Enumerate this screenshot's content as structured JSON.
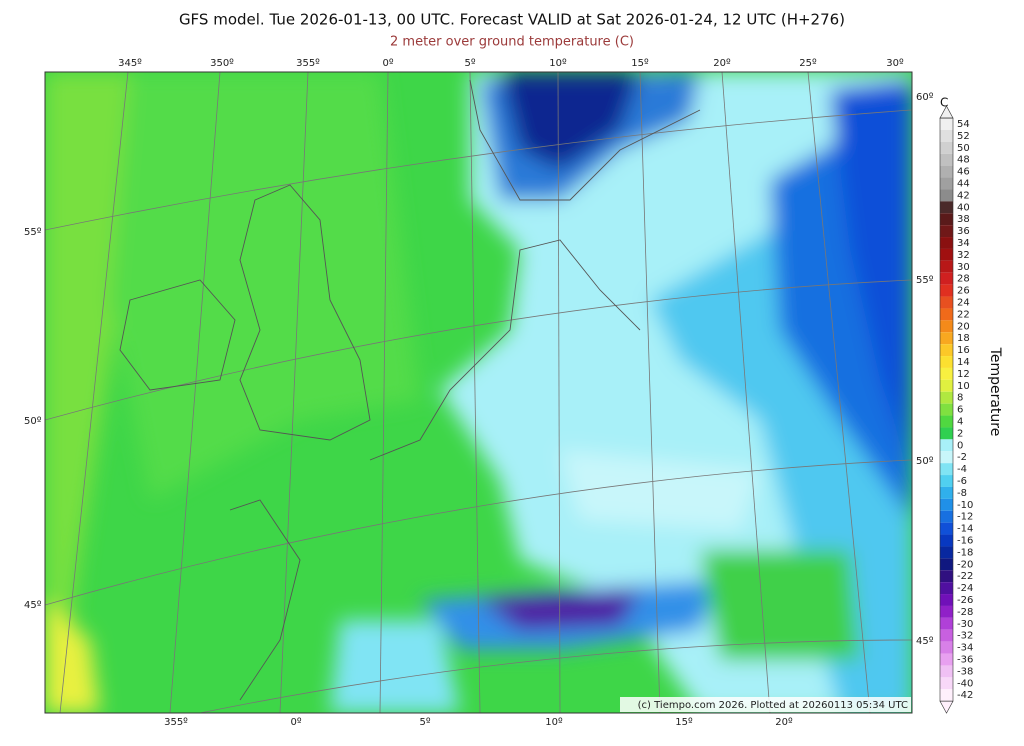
{
  "header": {
    "title": "GFS model. Tue 2026-01-13, 00 UTC. Forecast VALID at Sat 2026-01-24, 12 UTC (H+276)",
    "subtitle": "2 meter over ground temperature (C)"
  },
  "map": {
    "top_labels": [
      "345º",
      "350º",
      "355º",
      "0º",
      "5º",
      "10º",
      "15º",
      "20º",
      "25º",
      "30º"
    ],
    "bottom_labels": [
      "355º",
      "0º",
      "5º",
      "10º",
      "15º",
      "20º"
    ],
    "left_labels": [
      "55º",
      "50º",
      "45º"
    ],
    "right_labels": [
      "60º",
      "55º",
      "50º",
      "45º"
    ],
    "credit": "(c) Tiempo.com 2026. Plotted at 20260113 05:34 UTC"
  },
  "colorbar": {
    "unit": "C",
    "title": "Temperature",
    "ticks": [
      54,
      52,
      50,
      48,
      46,
      44,
      42,
      40,
      38,
      36,
      34,
      32,
      30,
      28,
      26,
      24,
      22,
      20,
      18,
      16,
      14,
      12,
      10,
      8,
      6,
      4,
      2,
      0,
      -2,
      -4,
      -6,
      -8,
      -10,
      -12,
      -14,
      -16,
      -18,
      -20,
      -22,
      -24,
      -26,
      -28,
      -30,
      -32,
      -34,
      -36,
      -38,
      -40,
      -42
    ],
    "colors": [
      "#f0f0f0",
      "#e0e0e0",
      "#d0d0d0",
      "#c0c0c0",
      "#b0b0b0",
      "#a0a0a0",
      "#8c8c8c",
      "#4a2a2a",
      "#5a1a1a",
      "#701818",
      "#8a1010",
      "#a01010",
      "#b81818",
      "#d02020",
      "#e03020",
      "#e85020",
      "#f06a1a",
      "#f48a1a",
      "#f8a820",
      "#fcc828",
      "#fce030",
      "#f8f040",
      "#e0f040",
      "#b0e840",
      "#80e040",
      "#50d840",
      "#30d050",
      "#a8f0f8",
      "#c8f6fa",
      "#80e4f4",
      "#50d0f0",
      "#30b0ec",
      "#2090e8",
      "#1870e0",
      "#1050d8",
      "#0838c0",
      "#0828a0",
      "#101880",
      "#301080",
      "#5010a0",
      "#7010b8",
      "#9020c8",
      "#b040d8",
      "#c860e0",
      "#d880e8",
      "#e8a0f0",
      "#f0c0f4",
      "#f8d8f8",
      "#fff0fc"
    ]
  }
}
